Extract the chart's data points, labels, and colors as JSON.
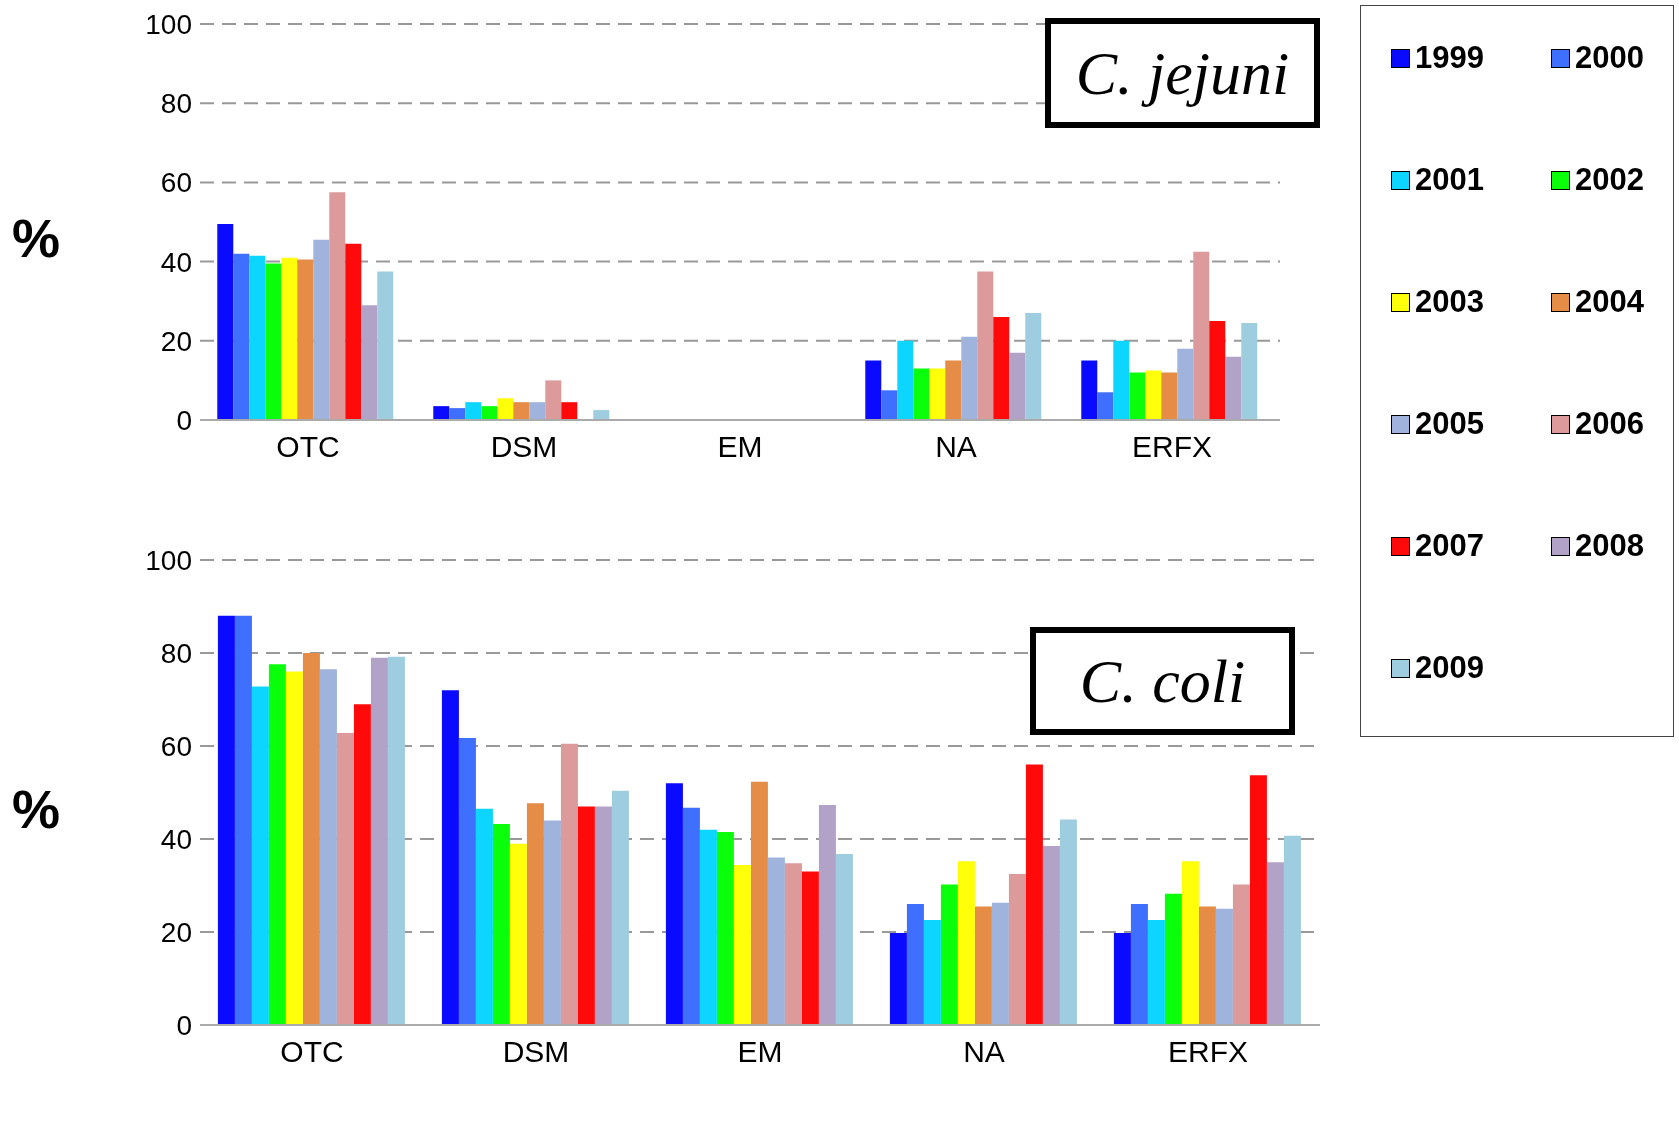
{
  "chart_data": [
    {
      "type": "bar",
      "ylabel": "%",
      "annotations": [
        "C. jejuni"
      ],
      "categories": [
        "OTC",
        "DSM",
        "EM",
        "NA",
        "ERFX"
      ],
      "ylim": [
        0,
        100
      ],
      "yticks": [
        0,
        20,
        40,
        60,
        80,
        100
      ],
      "grid": "y",
      "legend": "right",
      "series": [
        {
          "name": "1999",
          "color": "#0a0aff",
          "values": [
            49.5,
            3.5,
            0,
            15,
            15
          ]
        },
        {
          "name": "2000",
          "color": "#3f6fff",
          "values": [
            42,
            3,
            0,
            7.5,
            7
          ]
        },
        {
          "name": "2001",
          "color": "#0cd6ff",
          "values": [
            41.5,
            4.5,
            0,
            20,
            20
          ]
        },
        {
          "name": "2002",
          "color": "#0aff0a",
          "values": [
            39.5,
            3.5,
            0,
            13,
            12
          ]
        },
        {
          "name": "2003",
          "color": "#ffff0a",
          "values": [
            41,
            5.5,
            0,
            13,
            12.5
          ]
        },
        {
          "name": "2004",
          "color": "#e58c46",
          "values": [
            40.5,
            4.5,
            0,
            15,
            12
          ]
        },
        {
          "name": "2005",
          "color": "#9fb3dc",
          "values": [
            45.5,
            4.5,
            0,
            21,
            18
          ]
        },
        {
          "name": "2006",
          "color": "#dc9a9a",
          "values": [
            57.5,
            10,
            0,
            37.5,
            42.5
          ]
        },
        {
          "name": "2007",
          "color": "#ff0a0a",
          "values": [
            44.5,
            4.5,
            0,
            26,
            25
          ]
        },
        {
          "name": "2008",
          "color": "#b2a2c8",
          "values": [
            29,
            0,
            0,
            17,
            16
          ]
        },
        {
          "name": "2009",
          "color": "#9ecde0",
          "values": [
            37.5,
            2.5,
            0,
            27,
            24.5
          ]
        }
      ]
    },
    {
      "type": "bar",
      "ylabel": "%",
      "annotations": [
        "C. coli"
      ],
      "categories": [
        "OTC",
        "DSM",
        "EM",
        "NA",
        "ERFX"
      ],
      "ylim": [
        0,
        100
      ],
      "yticks": [
        0,
        20,
        40,
        60,
        80,
        100
      ],
      "grid": "y",
      "legend": "right",
      "series": [
        {
          "name": "1999",
          "color": "#0a0aff",
          "values": [
            88,
            72,
            52,
            19.8,
            19.8
          ]
        },
        {
          "name": "2000",
          "color": "#3f6fff",
          "values": [
            88,
            61.7,
            46.7,
            26,
            26
          ]
        },
        {
          "name": "2001",
          "color": "#0cd6ff",
          "values": [
            72.8,
            46.5,
            42,
            22.6,
            22.6
          ]
        },
        {
          "name": "2002",
          "color": "#0aff0a",
          "values": [
            77.6,
            43.2,
            41.5,
            30.2,
            28.2
          ]
        },
        {
          "name": "2003",
          "color": "#ffff0a",
          "values": [
            76,
            39,
            34.4,
            35.2,
            35.2
          ]
        },
        {
          "name": "2004",
          "color": "#e58c46",
          "values": [
            80,
            47.7,
            52.3,
            25.5,
            25.5
          ]
        },
        {
          "name": "2005",
          "color": "#9fb3dc",
          "values": [
            76.5,
            44,
            36,
            26.3,
            25
          ]
        },
        {
          "name": "2006",
          "color": "#dc9a9a",
          "values": [
            62.8,
            60.5,
            34.8,
            32.5,
            30.2
          ]
        },
        {
          "name": "2007",
          "color": "#ff0a0a",
          "values": [
            69,
            47,
            33,
            56,
            53.7
          ]
        },
        {
          "name": "2008",
          "color": "#b2a2c8",
          "values": [
            79,
            47,
            47.3,
            38.5,
            35
          ]
        },
        {
          "name": "2009",
          "color": "#9ecde0",
          "values": [
            79.2,
            50.4,
            36.8,
            44.2,
            40.7
          ]
        }
      ]
    }
  ]
}
